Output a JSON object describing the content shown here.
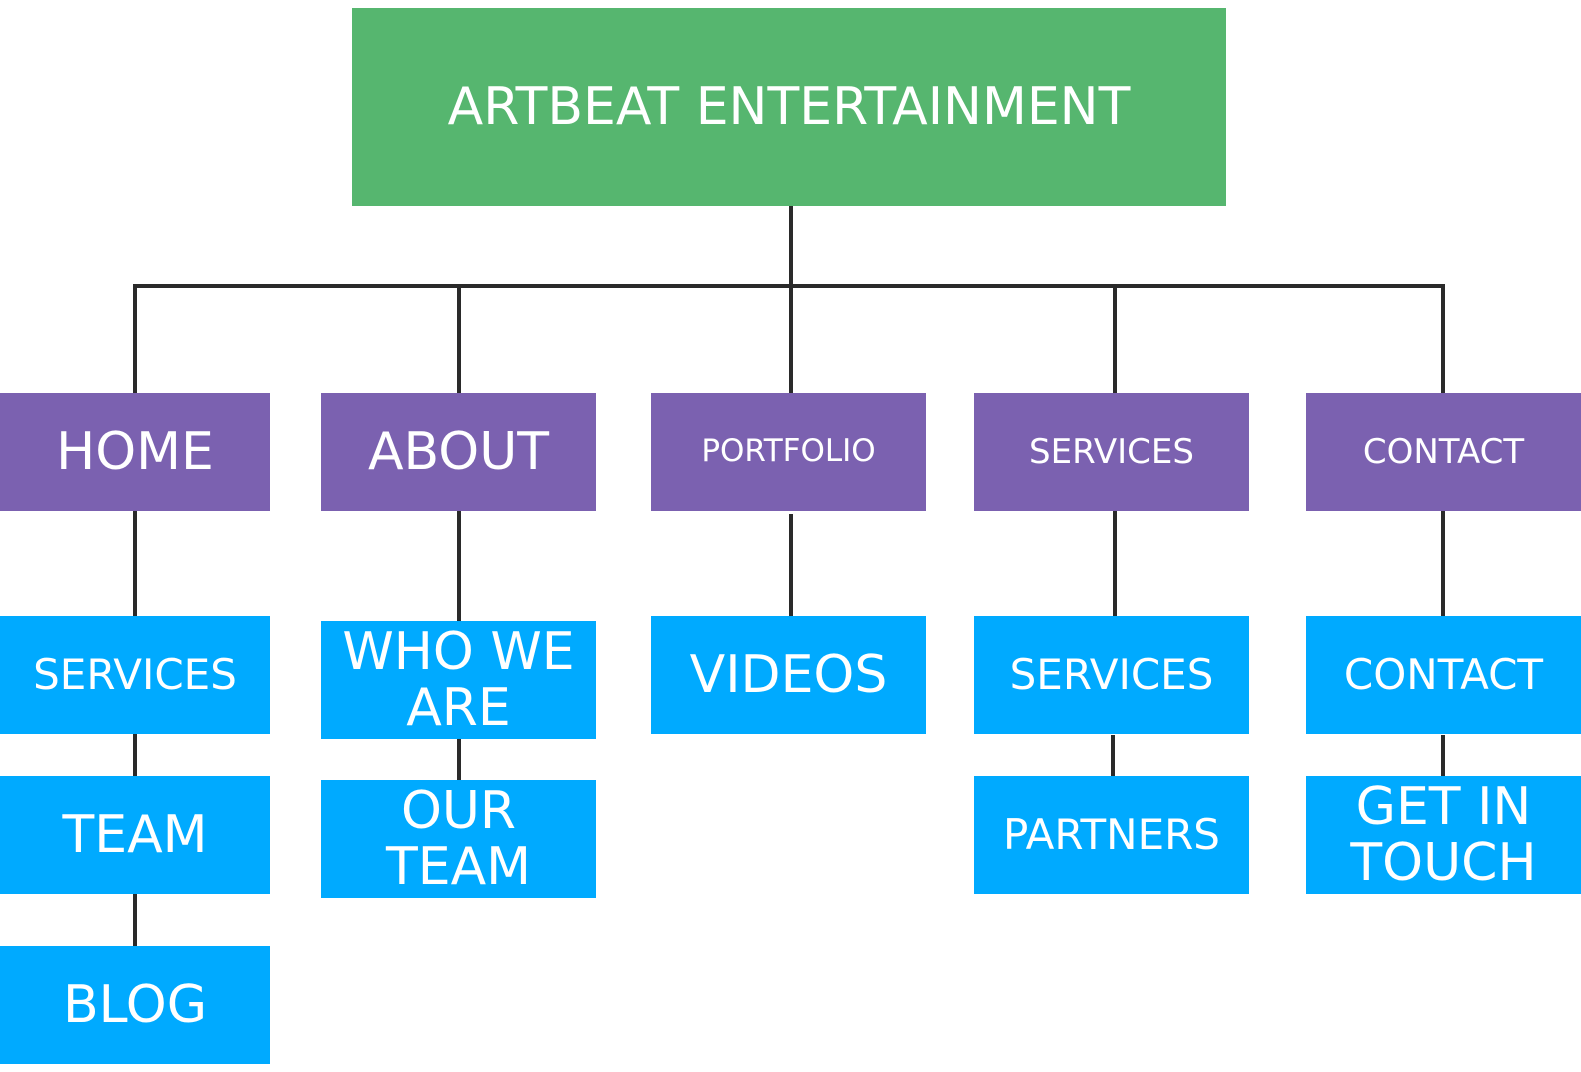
{
  "diagram": {
    "title": "ARTBEAT ENTERTAINMENT",
    "colors": {
      "root": "#56b66f",
      "category": "#7b61b0",
      "page": "#00aaff",
      "connector": "#2a2a2a",
      "text": "#ffffff"
    },
    "columns": [
      {
        "label": "HOME",
        "children": [
          "SERVICES",
          "TEAM",
          "BLOG"
        ]
      },
      {
        "label": "ABOUT",
        "children": [
          "WHO WE ARE",
          "OUR TEAM"
        ]
      },
      {
        "label": "PORTFOLIO",
        "children": [
          "VIDEOS"
        ]
      },
      {
        "label": "SERVICES",
        "children": [
          "SERVICES",
          "PARTNERS"
        ]
      },
      {
        "label": "CONTACT",
        "children": [
          "CONTACT",
          "GET IN TOUCH"
        ]
      }
    ]
  }
}
